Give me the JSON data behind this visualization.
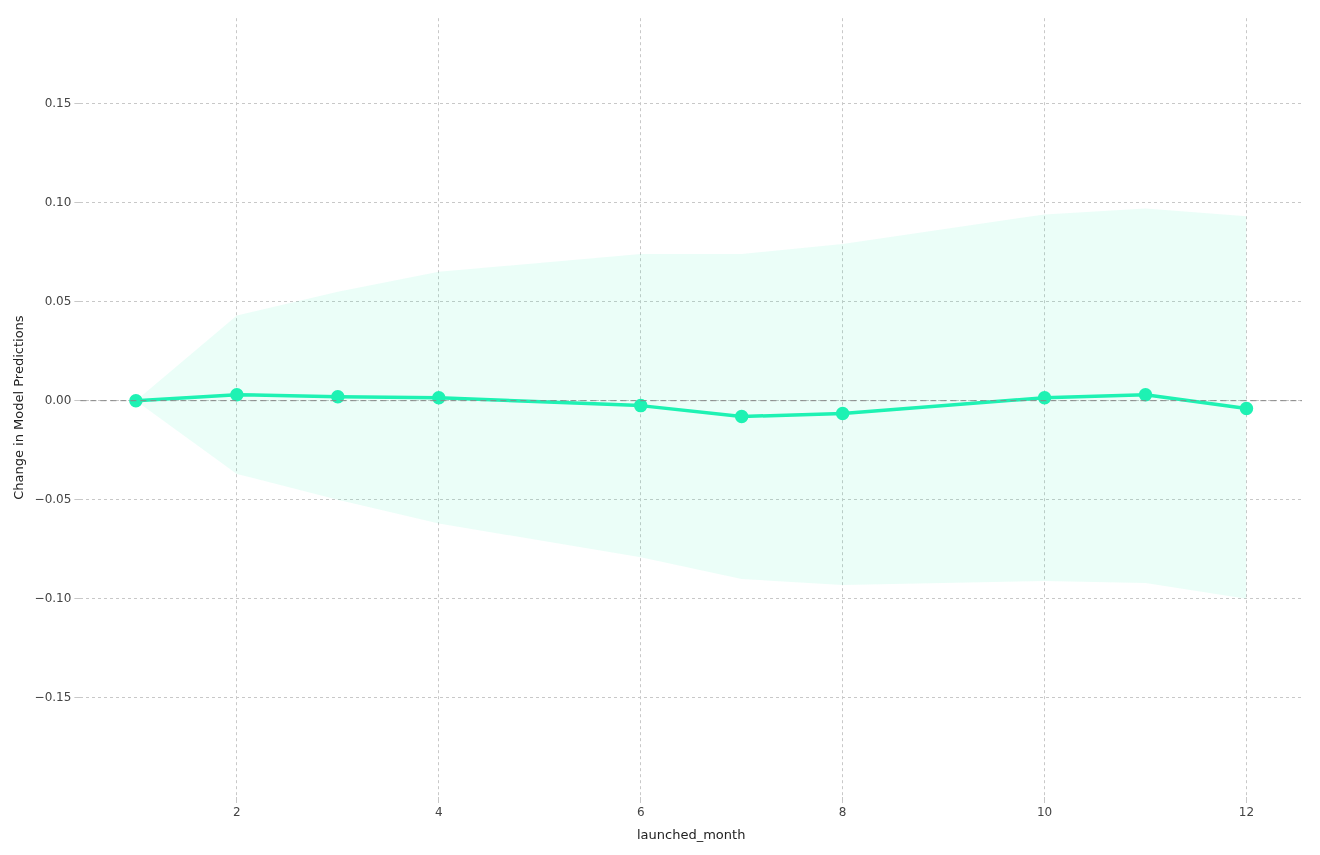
{
  "chart_data": {
    "type": "line",
    "xlabel": "launched_month",
    "ylabel": "Change in Model Predictions",
    "x": [
      1,
      2,
      3,
      4,
      6,
      7,
      8,
      10,
      11,
      12
    ],
    "series": [
      {
        "color": "#1ef2b4",
        "values": [
          0,
          0.003,
          0.002,
          0.0015,
          -0.0025,
          -0.008,
          -0.0065,
          0.0015,
          0.003,
          -0.004
        ],
        "lower": [
          0,
          -0.037,
          -0.05,
          -0.062,
          -0.079,
          -0.09,
          -0.093,
          -0.091,
          -0.092,
          -0.1
        ],
        "upper": [
          0,
          0.043,
          0.055,
          0.065,
          0.074,
          0.074,
          0.079,
          0.094,
          0.097,
          0.093
        ]
      }
    ],
    "xlim": [
      0.45,
      12.55
    ],
    "ylim": [
      -0.2,
      0.193
    ],
    "xticks": [
      2,
      4,
      6,
      8,
      10,
      12
    ],
    "yticks": [
      {
        "value": -0.15,
        "label": "−0.15"
      },
      {
        "value": -0.1,
        "label": "−0.10"
      },
      {
        "value": -0.05,
        "label": "−0.05"
      },
      {
        "value": 0,
        "label": "0.00"
      },
      {
        "value": 0.05,
        "label": "0.05"
      },
      {
        "value": 0.1,
        "label": "0.10"
      },
      {
        "value": 0.15,
        "label": "0.15"
      }
    ],
    "ref_lines": [
      {
        "axis": "y",
        "value": 0,
        "color": "#888888",
        "line_style": "dashed"
      }
    ],
    "grid": true,
    "legend": false,
    "marker": "circle",
    "line_style": "solid"
  }
}
